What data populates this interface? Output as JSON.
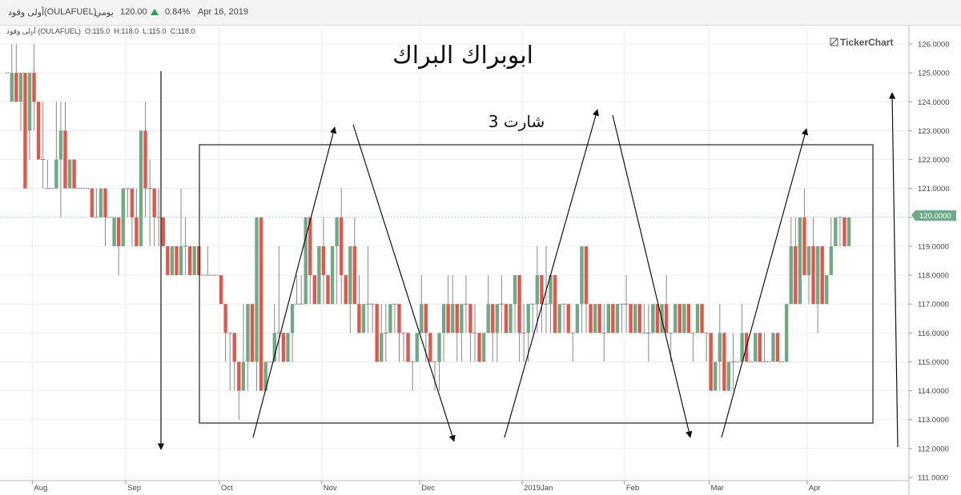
{
  "header": {
    "company": "أولى وقود",
    "symbol": "(OULAFUEL)",
    "period": "يومي",
    "last_price": "120.00",
    "change_pct": "0.84%",
    "date": "Apr 16, 2019",
    "up_color": "#2e9b4f"
  },
  "ohlc_line": {
    "label": "أولى وقود (OULAFUEL)",
    "open": "O:115.0",
    "high": "H:118.0",
    "low": "L:115.0",
    "close": "C:118.0"
  },
  "watermark": "TickerChart",
  "chart_data": {
    "type": "candlestick",
    "title": "ابوبراك البراك",
    "subtitle": "شارت 3",
    "y_ticks": [
      "111.0000",
      "112.0000",
      "113.0000",
      "114.0000",
      "115.0000",
      "116.0000",
      "117.0000",
      "118.0000",
      "119.0000",
      "120.0000",
      "121.0000",
      "122.0000",
      "123.0000",
      "124.0000",
      "125.0000",
      "126.0000"
    ],
    "ylim": [
      110.8,
      126.3
    ],
    "x_ticks": [
      {
        "label": "Aug",
        "index": 6
      },
      {
        "label": "Sep",
        "index": 27
      },
      {
        "label": "Oct",
        "index": 48
      },
      {
        "label": "Nov",
        "index": 71
      },
      {
        "label": "Dec",
        "index": 93
      },
      {
        "label": "2019Jan",
        "index": 116
      },
      {
        "label": "Feb",
        "index": 139
      },
      {
        "label": "Mar",
        "index": 158
      },
      {
        "label": "Apr",
        "index": 180
      }
    ],
    "x_count": 195,
    "current_price_label": "120.0000",
    "current_price": 120,
    "up_color": "#6fa985",
    "down_color": "#e2574c",
    "candles": [
      [
        125,
        125,
        125,
        125
      ],
      [
        124,
        126,
        124,
        125
      ],
      [
        125,
        126,
        124,
        124
      ],
      [
        124,
        125,
        123,
        125
      ],
      [
        125,
        125,
        121,
        121
      ],
      [
        123,
        125,
        122,
        125
      ],
      [
        125,
        126,
        123,
        124
      ],
      [
        124,
        124,
        122,
        122
      ],
      [
        122,
        124,
        121,
        122
      ],
      [
        121,
        122,
        121,
        121
      ],
      [
        121,
        121,
        121,
        121
      ],
      [
        121,
        124,
        121,
        122
      ],
      [
        122,
        124,
        120,
        123
      ],
      [
        123,
        124,
        121,
        121
      ],
      [
        121,
        122,
        121,
        122
      ],
      [
        122,
        122,
        121,
        121
      ],
      [
        121,
        121,
        121,
        121
      ],
      [
        121,
        121,
        121,
        121
      ],
      [
        121,
        121,
        121,
        121
      ],
      [
        121,
        121,
        120,
        120
      ],
      [
        120,
        121,
        120,
        120
      ],
      [
        120,
        121,
        120,
        121
      ],
      [
        121,
        121,
        119,
        120
      ],
      [
        120,
        120,
        120,
        120
      ],
      [
        119,
        120,
        119,
        120
      ],
      [
        120,
        120,
        118,
        119
      ],
      [
        119,
        121,
        119,
        121
      ],
      [
        121,
        121,
        120,
        121
      ],
      [
        121,
        121,
        119,
        120
      ],
      [
        120,
        121,
        119,
        119
      ],
      [
        119,
        123,
        119,
        123
      ],
      [
        123,
        124,
        120,
        121
      ],
      [
        121,
        122,
        119,
        121
      ],
      [
        121,
        121,
        119,
        120
      ],
      [
        120,
        121,
        119,
        120
      ],
      [
        120,
        120,
        119,
        119
      ],
      [
        119,
        119,
        118,
        118
      ],
      [
        118,
        119,
        118,
        119
      ],
      [
        119,
        119,
        118,
        118
      ],
      [
        118,
        121,
        118,
        119
      ],
      [
        119,
        120,
        118,
        119
      ],
      [
        119,
        119,
        118,
        118
      ],
      [
        118,
        119,
        118,
        119
      ],
      [
        119,
        119,
        118,
        118
      ],
      [
        118,
        118,
        118,
        118
      ],
      [
        118,
        119,
        118,
        118
      ],
      [
        118,
        118,
        118,
        118
      ],
      [
        118,
        118,
        118,
        118
      ],
      [
        118,
        118,
        117,
        117
      ],
      [
        117,
        117,
        115,
        116
      ],
      [
        116,
        116,
        114,
        116
      ],
      [
        116,
        116,
        114,
        115
      ],
      [
        115,
        115,
        113,
        114
      ],
      [
        114,
        117,
        114,
        115
      ],
      [
        115,
        117,
        114,
        117
      ],
      [
        117,
        117,
        115,
        115
      ],
      [
        115,
        120,
        114,
        120
      ],
      [
        120,
        120,
        114,
        114
      ],
      [
        114,
        115,
        114,
        115
      ],
      [
        115,
        115,
        115,
        115
      ],
      [
        115,
        117,
        115,
        116
      ],
      [
        116,
        119,
        115,
        116
      ],
      [
        116,
        116,
        115,
        115
      ],
      [
        115,
        116,
        115,
        116
      ],
      [
        116,
        117,
        115,
        117
      ],
      [
        117,
        118,
        117,
        117
      ],
      [
        117,
        118,
        117,
        117
      ],
      [
        117,
        120,
        117,
        120
      ],
      [
        120,
        120,
        117,
        118
      ],
      [
        118,
        118,
        117,
        117
      ],
      [
        117,
        119,
        117,
        119
      ],
      [
        119,
        120,
        117,
        118
      ],
      [
        118,
        118,
        117,
        117
      ],
      [
        117,
        119,
        117,
        119
      ],
      [
        119,
        120,
        117,
        120
      ],
      [
        120,
        121,
        117,
        118
      ],
      [
        118,
        118,
        117,
        117
      ],
      [
        117,
        119,
        116,
        119
      ],
      [
        119,
        120,
        117,
        117
      ],
      [
        117,
        118,
        116,
        116
      ],
      [
        116,
        117,
        116,
        117
      ],
      [
        117,
        119,
        116,
        117
      ],
      [
        117,
        117,
        116,
        117
      ],
      [
        117,
        117,
        115,
        115
      ],
      [
        115,
        117,
        115,
        116
      ],
      [
        116,
        117,
        115,
        116
      ],
      [
        116,
        117,
        116,
        117
      ],
      [
        117,
        117,
        116,
        117
      ],
      [
        117,
        117,
        115,
        116
      ],
      [
        116,
        116,
        115,
        116
      ],
      [
        116,
        116,
        115,
        115
      ],
      [
        115,
        115,
        114,
        115
      ],
      [
        115,
        116,
        115,
        116
      ],
      [
        116,
        118,
        116,
        117
      ],
      [
        117,
        117,
        115,
        116
      ],
      [
        116,
        116,
        115,
        115
      ],
      [
        115,
        115,
        114,
        115
      ],
      [
        115,
        116,
        114,
        116
      ],
      [
        116,
        117,
        115,
        117
      ],
      [
        117,
        118,
        116,
        116
      ],
      [
        116,
        118,
        116,
        117
      ],
      [
        117,
        117,
        115,
        116
      ],
      [
        116,
        117,
        115,
        117
      ],
      [
        117,
        118,
        116,
        117
      ],
      [
        117,
        117,
        115,
        116
      ],
      [
        116,
        117,
        115,
        116
      ],
      [
        116,
        116,
        115,
        115
      ],
      [
        115,
        116,
        115,
        116
      ],
      [
        116,
        118,
        116,
        117
      ],
      [
        117,
        117,
        115,
        116
      ],
      [
        116,
        117,
        115,
        117
      ],
      [
        117,
        118,
        116,
        117
      ],
      [
        117,
        117,
        116,
        116
      ],
      [
        116,
        117,
        116,
        117
      ],
      [
        117,
        118,
        116,
        118
      ],
      [
        118,
        118,
        115,
        116
      ],
      [
        116,
        117,
        115,
        116
      ],
      [
        116,
        117,
        115,
        117
      ],
      [
        117,
        117,
        116,
        117
      ],
      [
        117,
        119,
        116,
        118
      ],
      [
        118,
        118,
        116,
        117
      ],
      [
        117,
        119,
        116,
        117
      ],
      [
        117,
        118,
        116,
        118
      ],
      [
        118,
        118,
        116,
        116
      ],
      [
        116,
        117,
        116,
        117
      ],
      [
        117,
        117,
        116,
        117
      ],
      [
        117,
        117,
        116,
        116
      ],
      [
        116,
        116,
        115,
        116
      ],
      [
        116,
        117,
        116,
        117
      ],
      [
        117,
        119,
        116,
        119
      ],
      [
        119,
        119,
        116,
        117
      ],
      [
        117,
        117,
        116,
        116
      ],
      [
        116,
        117,
        116,
        117
      ],
      [
        117,
        117,
        116,
        116
      ],
      [
        116,
        117,
        115,
        116
      ],
      [
        116,
        117,
        116,
        117
      ],
      [
        117,
        117,
        116,
        116
      ],
      [
        116,
        117,
        116,
        117
      ],
      [
        117,
        117,
        116,
        117
      ],
      [
        117,
        118,
        116,
        117
      ],
      [
        117,
        117,
        116,
        116
      ],
      [
        116,
        117,
        116,
        117
      ],
      [
        117,
        117,
        116,
        116
      ],
      [
        116,
        117,
        116,
        116
      ],
      [
        116,
        117,
        115,
        116
      ],
      [
        116,
        117,
        116,
        117
      ],
      [
        117,
        117,
        116,
        116
      ],
      [
        116,
        117,
        116,
        117
      ],
      [
        117,
        118,
        116,
        116
      ],
      [
        116,
        116,
        115,
        116
      ],
      [
        116,
        117,
        116,
        117
      ],
      [
        117,
        117,
        116,
        116
      ],
      [
        116,
        117,
        116,
        117
      ],
      [
        117,
        117,
        116,
        116
      ],
      [
        116,
        116,
        115,
        116
      ],
      [
        116,
        117,
        116,
        117
      ],
      [
        117,
        117,
        116,
        116
      ],
      [
        116,
        116,
        115,
        116
      ],
      [
        116,
        116,
        114,
        114
      ],
      [
        114,
        115,
        114,
        115
      ],
      [
        115,
        117,
        114,
        116
      ],
      [
        116,
        116,
        114,
        114
      ],
      [
        114,
        115,
        114,
        115
      ],
      [
        115,
        116,
        114,
        115
      ],
      [
        115,
        115,
        115,
        115
      ],
      [
        115,
        117,
        115,
        116
      ],
      [
        116,
        116,
        115,
        115
      ],
      [
        115,
        115,
        115,
        115
      ],
      [
        115,
        116,
        115,
        116
      ],
      [
        116,
        116,
        115,
        115
      ],
      [
        115,
        116,
        115,
        115
      ],
      [
        115,
        115,
        115,
        115
      ],
      [
        115,
        116,
        115,
        116
      ],
      [
        116,
        116,
        115,
        115
      ],
      [
        115,
        115,
        115,
        115
      ],
      [
        115,
        117,
        115,
        117
      ],
      [
        117,
        120,
        117,
        119
      ],
      [
        119,
        120,
        117,
        117
      ],
      [
        117,
        120,
        117,
        120
      ],
      [
        120,
        121,
        118,
        118
      ],
      [
        118,
        119,
        117,
        119
      ],
      [
        119,
        120,
        117,
        117
      ],
      [
        117,
        119,
        116,
        119
      ],
      [
        119,
        119,
        117,
        117
      ],
      [
        117,
        118,
        117,
        118
      ],
      [
        118,
        120,
        118,
        119
      ],
      [
        119,
        120,
        119,
        120
      ],
      [
        120,
        120,
        119,
        120
      ],
      [
        120,
        120,
        119,
        119
      ],
      [
        119,
        120,
        119,
        120
      ]
    ]
  }
}
